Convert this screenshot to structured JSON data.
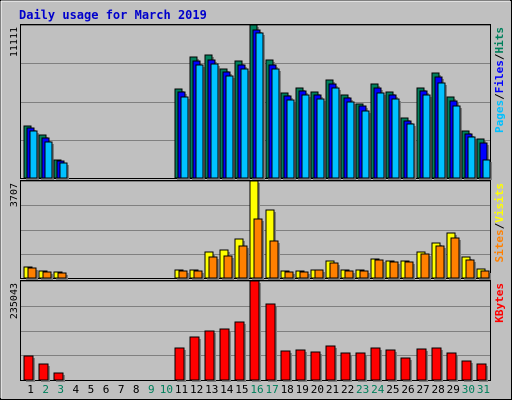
{
  "chart_data": [
    {
      "type": "bar",
      "title": "Daily usage for March 2019",
      "ylabel_parts": [
        "Pages",
        "/",
        "Files",
        "/",
        "Hits"
      ],
      "y_max_label": "11111",
      "categories": [
        "1",
        "2",
        "3",
        "4",
        "5",
        "6",
        "7",
        "8",
        "9",
        "10",
        "11",
        "12",
        "13",
        "14",
        "15",
        "16",
        "17",
        "18",
        "19",
        "20",
        "21",
        "22",
        "23",
        "24",
        "25",
        "26",
        "27",
        "28",
        "29",
        "30",
        "31"
      ],
      "weekend_days": [
        "2",
        "3",
        "9",
        "10",
        "16",
        "17",
        "23",
        "24",
        "30",
        "31"
      ],
      "ylim": [
        0,
        11111
      ],
      "grid": true,
      "series": [
        {
          "name": "Hits",
          "color": "#00805c",
          "values": [
            3800,
            3100,
            1300,
            0,
            0,
            0,
            0,
            0,
            0,
            0,
            6450,
            8800,
            8900,
            7950,
            8500,
            11111,
            8600,
            6150,
            6550,
            6250,
            7100,
            6000,
            5400,
            6800,
            6250,
            4350,
            6550,
            7600,
            5850,
            3400,
            2800
          ]
        },
        {
          "name": "Files",
          "color": "#0000ff",
          "values": [
            3650,
            2900,
            1200,
            0,
            0,
            0,
            0,
            0,
            0,
            0,
            6250,
            8500,
            8600,
            7700,
            8200,
            10750,
            8200,
            5950,
            6300,
            6050,
            6850,
            5800,
            5200,
            6550,
            6050,
            4150,
            6300,
            7300,
            5600,
            3200,
            2550
          ]
        },
        {
          "name": "Pages",
          "color": "#00c0ff",
          "values": [
            3400,
            2600,
            1100,
            0,
            0,
            0,
            0,
            0,
            0,
            0,
            5900,
            8200,
            8300,
            7400,
            7900,
            10500,
            7900,
            5650,
            6000,
            5750,
            6500,
            5500,
            4900,
            6200,
            5750,
            3900,
            6000,
            6900,
            5250,
            3000,
            1300
          ]
        }
      ]
    },
    {
      "type": "bar",
      "ylabel_parts": [
        "Sites",
        "/",
        "Visits"
      ],
      "y_max_label": "3707",
      "ylim": [
        0,
        3707
      ],
      "grid": true,
      "series": [
        {
          "name": "Visits",
          "color": "#ffff00",
          "values": [
            430,
            250,
            230,
            0,
            0,
            0,
            0,
            0,
            0,
            0,
            300,
            300,
            980,
            1080,
            1500,
            3707,
            2600,
            260,
            260,
            310,
            640,
            290,
            290,
            730,
            640,
            640,
            1000,
            1320,
            1730,
            800,
            330
          ]
        },
        {
          "name": "Sites",
          "color": "#ff8000",
          "values": [
            400,
            220,
            200,
            0,
            0,
            0,
            0,
            0,
            0,
            0,
            260,
            280,
            800,
            830,
            1230,
            2260,
            1430,
            240,
            240,
            290,
            580,
            270,
            270,
            690,
            610,
            620,
            920,
            1240,
            1520,
            700,
            250
          ]
        }
      ]
    },
    {
      "type": "bar",
      "ylabel_parts": [
        "KBytes"
      ],
      "y_max_label": "235043",
      "ylim": [
        0,
        235043
      ],
      "grid": true,
      "series": [
        {
          "name": "KBytes",
          "color": "#ff0000",
          "values": [
            57000,
            38000,
            17000,
            0,
            0,
            0,
            0,
            0,
            0,
            0,
            76000,
            102000,
            117000,
            121000,
            137000,
            235043,
            180000,
            70000,
            72000,
            66000,
            80000,
            65000,
            64000,
            76000,
            71000,
            53000,
            73000,
            76000,
            63000,
            46000,
            37000
          ]
        }
      ]
    }
  ]
}
